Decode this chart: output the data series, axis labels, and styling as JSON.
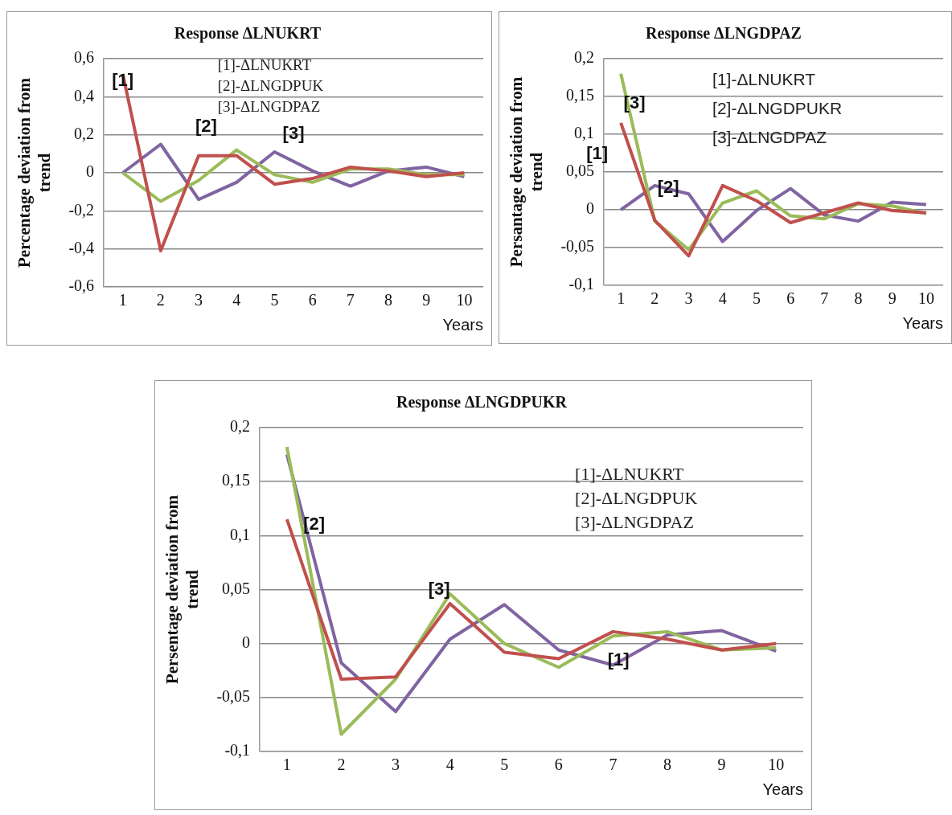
{
  "chart_data": [
    {
      "type": "line",
      "title": "Response ΔLNUKRT",
      "ylabel": "Percentage deviation from trend",
      "xlabel": "Years",
      "categories": [
        "1",
        "2",
        "3",
        "4",
        "5",
        "6",
        "7",
        "8",
        "9",
        "10"
      ],
      "series": [
        {
          "color": "#c0504d",
          "values": [
            0.52,
            -0.41,
            0.09,
            0.09,
            -0.06,
            -0.03,
            0.03,
            0.01,
            -0.02,
            0
          ]
        },
        {
          "color": "#9bbb59",
          "values": [
            0,
            -0.15,
            -0.04,
            0.12,
            -0.01,
            -0.05,
            0.02,
            0.02,
            -0.01,
            -0.01
          ]
        },
        {
          "color": "#8064a2",
          "values": [
            0,
            0.15,
            -0.14,
            -0.05,
            0.11,
            0.01,
            -0.07,
            0.01,
            0.03,
            -0.02
          ]
        }
      ],
      "ylim": [
        -0.6,
        0.6
      ],
      "yticks": [
        {
          "value": -0.6,
          "label": "-0,6"
        },
        {
          "value": -0.4,
          "label": "-0,4"
        },
        {
          "value": -0.2,
          "label": "-0,2"
        },
        {
          "value": 0,
          "label": "0"
        },
        {
          "value": 0.2,
          "label": "0,2"
        },
        {
          "value": 0.4,
          "label": "0,4"
        },
        {
          "value": 0.6,
          "label": "0,6"
        }
      ],
      "grid": "y",
      "legend": false,
      "marker": "none",
      "line_style": "solid",
      "annotations": [
        "[1]-ΔLNUKRT",
        "[2]-ΔLNGDPUK",
        "[3]-ΔLNGDPAZ",
        "[1]",
        "[2]",
        "[3]"
      ]
    },
    {
      "type": "line",
      "title": "Response ΔLNGDPAZ",
      "ylabel": "Persantage deviation from trend",
      "xlabel": "Years",
      "categories": [
        "1",
        "2",
        "3",
        "4",
        "5",
        "6",
        "7",
        "8",
        "9",
        "10"
      ],
      "series": [
        {
          "color": "#c0504d",
          "values": [
            0.115,
            -0.014,
            -0.061,
            0.032,
            0.012,
            -0.017,
            -0.004,
            0.009,
            -0.001,
            -0.004
          ]
        },
        {
          "color": "#9bbb59",
          "values": [
            0.18,
            -0.015,
            -0.053,
            0.009,
            0.025,
            -0.008,
            -0.012,
            0.008,
            0.005,
            -0.005
          ]
        },
        {
          "color": "#8064a2",
          "values": [
            0,
            0.032,
            0.021,
            -0.042,
            -0.001,
            0.028,
            -0.007,
            -0.015,
            0.01,
            0.007
          ]
        }
      ],
      "ylim": [
        -0.1,
        0.2
      ],
      "yticks": [
        {
          "value": -0.1,
          "label": "-0,1"
        },
        {
          "value": -0.05,
          "label": "-0,05"
        },
        {
          "value": 0,
          "label": "0"
        },
        {
          "value": 0.05,
          "label": "0,05"
        },
        {
          "value": 0.1,
          "label": "0,1"
        },
        {
          "value": 0.15,
          "label": "0,15"
        },
        {
          "value": 0.2,
          "label": "0,2"
        }
      ],
      "grid": "y",
      "legend": false,
      "marker": "none",
      "line_style": "solid",
      "annotations": [
        "[1]-ΔLNUKRT",
        "[2]-ΔLNGDPUKR",
        "[3]-ΔLNGDPAZ",
        "[1]",
        "[3]",
        "[2]"
      ]
    },
    {
      "type": "line",
      "title": "Response ΔLNGDPUKR",
      "ylabel": "Persentage deviation from trend",
      "xlabel": "Years",
      "categories": [
        "1",
        "2",
        "3",
        "4",
        "5",
        "6",
        "7",
        "8",
        "9",
        "10"
      ],
      "series": [
        {
          "color": "#c0504d",
          "values": [
            0.115,
            -0.033,
            -0.031,
            0.037,
            -0.008,
            -0.014,
            0.011,
            0.004,
            -0.006,
            0
          ]
        },
        {
          "color": "#9bbb59",
          "values": [
            0.182,
            -0.084,
            -0.033,
            0.046,
            0,
            -0.022,
            0.007,
            0.011,
            -0.006,
            -0.004
          ]
        },
        {
          "color": "#8064a2",
          "values": [
            0.175,
            -0.018,
            -0.063,
            0.004,
            0.036,
            -0.006,
            -0.02,
            0.008,
            0.012,
            -0.007
          ]
        }
      ],
      "ylim": [
        -0.1,
        0.2
      ],
      "yticks": [
        {
          "value": -0.1,
          "label": "-0,1"
        },
        {
          "value": -0.05,
          "label": "-0,05"
        },
        {
          "value": 0,
          "label": "0"
        },
        {
          "value": 0.05,
          "label": "0,05"
        },
        {
          "value": 0.1,
          "label": "0,1"
        },
        {
          "value": 0.15,
          "label": "0,15"
        },
        {
          "value": 0.2,
          "label": "0,2"
        }
      ],
      "grid": "y",
      "legend": false,
      "marker": "none",
      "line_style": "solid",
      "annotations": [
        "[1]-ΔLNUKRT",
        "[2]-ΔLNGDPUK",
        "[3]-ΔLNGDPAZ",
        "[2]",
        "[3]",
        "[1]"
      ]
    }
  ]
}
